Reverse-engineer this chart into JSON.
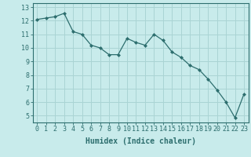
{
  "x": [
    0,
    1,
    2,
    3,
    4,
    5,
    6,
    7,
    8,
    9,
    10,
    11,
    12,
    13,
    14,
    15,
    16,
    17,
    18,
    19,
    20,
    21,
    22,
    23
  ],
  "y": [
    12.1,
    12.2,
    12.3,
    12.55,
    11.2,
    11.0,
    10.2,
    10.0,
    9.5,
    9.5,
    10.7,
    10.4,
    10.2,
    11.0,
    10.55,
    9.7,
    9.3,
    8.7,
    8.4,
    7.7,
    6.9,
    6.0,
    4.85,
    6.6
  ],
  "line_color": "#2d6e6e",
  "marker": "D",
  "marker_size": 2.0,
  "bg_color": "#c8ebeb",
  "grid_color": "#aad4d4",
  "xlabel": "Humidex (Indice chaleur)",
  "ylim": [
    4.5,
    13.3
  ],
  "xlim": [
    -0.5,
    23.5
  ],
  "yticks": [
    5,
    6,
    7,
    8,
    9,
    10,
    11,
    12,
    13
  ],
  "xticks": [
    0,
    1,
    2,
    3,
    4,
    5,
    6,
    7,
    8,
    9,
    10,
    11,
    12,
    13,
    14,
    15,
    16,
    17,
    18,
    19,
    20,
    21,
    22,
    23
  ],
  "tick_fontsize": 6.0,
  "xlabel_fontsize": 7.0
}
